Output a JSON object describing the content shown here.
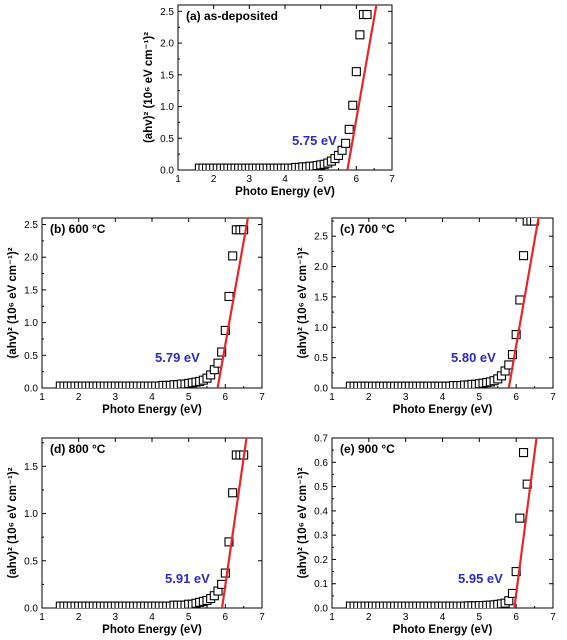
{
  "style": {
    "fit_color": "#e8262a",
    "marker_color": "#000000",
    "annotation_color": "#2b2bbd"
  },
  "chart_data": [
    {
      "type": "scatter",
      "title": "(a) as-deposited",
      "xlabel": "Photo Energy (eV)",
      "ylabel": "(ahv)² (10⁶ eV cm⁻¹)²",
      "xlim": [
        1,
        7
      ],
      "ylim": [
        0,
        2.6
      ],
      "xticks": [
        1,
        2,
        3,
        4,
        5,
        6,
        7
      ],
      "xtick_labels": [
        "1",
        "2",
        "3",
        "4",
        "5",
        "6",
        "7"
      ],
      "yticks": [
        0,
        0.5,
        1.0,
        1.5,
        2.0,
        2.5
      ],
      "ytick_labels": [
        "0.0",
        "0.5",
        "1.0",
        "1.5",
        "2.0",
        "2.5"
      ],
      "annotation": "5.75 eV",
      "band_gap_eV": 5.75,
      "fit_line": {
        "x": [
          5.75,
          6.6
        ],
        "y": [
          0,
          2.72
        ]
      },
      "series": [
        {
          "x": [
            1.6,
            1.7,
            1.8,
            1.9,
            2.0,
            2.1,
            2.2,
            2.3,
            2.4,
            2.5,
            2.6,
            2.7,
            2.8,
            2.9,
            3.0,
            3.1,
            3.2,
            3.3,
            3.4,
            3.5,
            3.6,
            3.7,
            3.8,
            3.9,
            4.0,
            4.1,
            4.2,
            4.3,
            4.4,
            4.5,
            4.6,
            4.7,
            4.8,
            4.9,
            5.0,
            5.1,
            5.2,
            5.3,
            5.4,
            5.5,
            5.6,
            5.7,
            5.8,
            5.9,
            6.0,
            6.1,
            6.2,
            6.3
          ],
          "y": [
            0.03,
            0.03,
            0.03,
            0.03,
            0.03,
            0.03,
            0.03,
            0.03,
            0.03,
            0.03,
            0.03,
            0.03,
            0.03,
            0.03,
            0.03,
            0.03,
            0.03,
            0.03,
            0.03,
            0.03,
            0.03,
            0.03,
            0.03,
            0.03,
            0.03,
            0.03,
            0.03,
            0.04,
            0.04,
            0.05,
            0.05,
            0.06,
            0.06,
            0.07,
            0.08,
            0.09,
            0.11,
            0.14,
            0.18,
            0.23,
            0.31,
            0.42,
            0.64,
            1.02,
            1.55,
            2.13,
            2.45,
            2.45
          ]
        }
      ]
    },
    {
      "type": "scatter",
      "title": "(b) 600 °C",
      "xlabel": "Photo Energy (eV)",
      "ylabel": "(ahv)² (10⁶ eV cm⁻¹)²",
      "xlim": [
        1,
        7
      ],
      "ylim": [
        0,
        2.6
      ],
      "xticks": [
        1,
        2,
        3,
        4,
        5,
        6,
        7
      ],
      "xtick_labels": [
        "1",
        "2",
        "3",
        "4",
        "5",
        "6",
        "7"
      ],
      "yticks": [
        0,
        0.5,
        1.0,
        1.5,
        2.0,
        2.5
      ],
      "ytick_labels": [
        "0.0",
        "0.5",
        "1.0",
        "1.5",
        "2.0",
        "2.5"
      ],
      "annotation": "5.79 eV",
      "band_gap_eV": 5.79,
      "fit_line": {
        "x": [
          5.79,
          6.63
        ],
        "y": [
          0,
          2.65
        ]
      },
      "series": [
        {
          "x": [
            1.5,
            1.6,
            1.7,
            1.8,
            1.9,
            2.0,
            2.1,
            2.2,
            2.3,
            2.4,
            2.5,
            2.6,
            2.7,
            2.8,
            2.9,
            3.0,
            3.1,
            3.2,
            3.3,
            3.4,
            3.5,
            3.6,
            3.7,
            3.8,
            3.9,
            4.0,
            4.1,
            4.2,
            4.3,
            4.4,
            4.5,
            4.6,
            4.7,
            4.8,
            4.9,
            5.0,
            5.1,
            5.2,
            5.3,
            5.4,
            5.5,
            5.6,
            5.7,
            5.8,
            5.9,
            6.0,
            6.1,
            6.2,
            6.3,
            6.4,
            6.5
          ],
          "y": [
            0.03,
            0.03,
            0.03,
            0.03,
            0.03,
            0.03,
            0.03,
            0.03,
            0.03,
            0.03,
            0.03,
            0.03,
            0.03,
            0.03,
            0.03,
            0.03,
            0.03,
            0.03,
            0.03,
            0.03,
            0.03,
            0.03,
            0.03,
            0.03,
            0.03,
            0.03,
            0.03,
            0.03,
            0.04,
            0.04,
            0.04,
            0.05,
            0.05,
            0.06,
            0.06,
            0.07,
            0.08,
            0.09,
            0.1,
            0.12,
            0.15,
            0.2,
            0.28,
            0.38,
            0.55,
            0.88,
            1.4,
            2.02,
            2.42,
            2.42,
            2.42
          ]
        }
      ]
    },
    {
      "type": "scatter",
      "title": "(c) 700 °C",
      "xlabel": "Photo Energy (eV)",
      "ylabel": "(ahv)² (10⁶ eV cm⁻¹)²",
      "xlim": [
        1,
        7
      ],
      "ylim": [
        0,
        2.8
      ],
      "xticks": [
        1,
        2,
        3,
        4,
        5,
        6,
        7
      ],
      "xtick_labels": [
        "1",
        "2",
        "3",
        "4",
        "5",
        "6",
        "7"
      ],
      "yticks": [
        0,
        0.5,
        1.0,
        1.5,
        2.0,
        2.5
      ],
      "ytick_labels": [
        "0.0",
        "0.5",
        "1.0",
        "1.5",
        "2.0",
        "2.5"
      ],
      "annotation": "5.80 eV",
      "band_gap_eV": 5.8,
      "fit_line": {
        "x": [
          5.8,
          6.62
        ],
        "y": [
          0,
          2.85
        ]
      },
      "series": [
        {
          "x": [
            1.5,
            1.6,
            1.7,
            1.8,
            1.9,
            2.0,
            2.1,
            2.2,
            2.3,
            2.4,
            2.5,
            2.6,
            2.7,
            2.8,
            2.9,
            3.0,
            3.1,
            3.2,
            3.3,
            3.4,
            3.5,
            3.6,
            3.7,
            3.8,
            3.9,
            4.0,
            4.1,
            4.2,
            4.3,
            4.4,
            4.5,
            4.6,
            4.7,
            4.8,
            4.9,
            5.0,
            5.1,
            5.2,
            5.3,
            5.4,
            5.5,
            5.6,
            5.7,
            5.8,
            5.9,
            6.0,
            6.1,
            6.2,
            6.3,
            6.4,
            6.5
          ],
          "y": [
            0.03,
            0.03,
            0.03,
            0.03,
            0.03,
            0.03,
            0.03,
            0.03,
            0.03,
            0.03,
            0.03,
            0.03,
            0.03,
            0.03,
            0.03,
            0.03,
            0.03,
            0.03,
            0.03,
            0.03,
            0.03,
            0.03,
            0.03,
            0.03,
            0.03,
            0.03,
            0.03,
            0.03,
            0.04,
            0.04,
            0.04,
            0.05,
            0.05,
            0.06,
            0.06,
            0.07,
            0.08,
            0.09,
            0.1,
            0.12,
            0.15,
            0.2,
            0.28,
            0.38,
            0.55,
            0.88,
            1.45,
            2.18,
            2.75,
            2.75,
            2.75
          ]
        }
      ]
    },
    {
      "type": "scatter",
      "title": "(d) 800 °C",
      "xlabel": "Photo Energy (eV)",
      "ylabel": "(ahv)² (10⁶ eV cm⁻¹)²",
      "xlim": [
        1,
        7
      ],
      "ylim": [
        0,
        1.8
      ],
      "xticks": [
        1,
        2,
        3,
        4,
        5,
        6,
        7
      ],
      "xtick_labels": [
        "1",
        "2",
        "3",
        "4",
        "5",
        "6",
        "7"
      ],
      "yticks": [
        0,
        0.5,
        1.0,
        1.5
      ],
      "ytick_labels": [
        "0.0",
        "0.5",
        "1.0",
        "1.5"
      ],
      "annotation": "5.91 eV",
      "band_gap_eV": 5.91,
      "fit_line": {
        "x": [
          5.91,
          6.6
        ],
        "y": [
          0,
          1.86
        ]
      },
      "series": [
        {
          "x": [
            1.5,
            1.6,
            1.7,
            1.8,
            1.9,
            2.0,
            2.1,
            2.2,
            2.3,
            2.4,
            2.5,
            2.6,
            2.7,
            2.8,
            2.9,
            3.0,
            3.1,
            3.2,
            3.3,
            3.4,
            3.5,
            3.6,
            3.7,
            3.8,
            3.9,
            4.0,
            4.1,
            4.2,
            4.3,
            4.4,
            4.5,
            4.6,
            4.7,
            4.8,
            4.9,
            5.0,
            5.1,
            5.2,
            5.3,
            5.4,
            5.5,
            5.6,
            5.7,
            5.8,
            5.9,
            6.0,
            6.1,
            6.2,
            6.3,
            6.4,
            6.5
          ],
          "y": [
            0.02,
            0.02,
            0.02,
            0.02,
            0.02,
            0.02,
            0.02,
            0.02,
            0.02,
            0.02,
            0.02,
            0.02,
            0.02,
            0.02,
            0.02,
            0.02,
            0.02,
            0.02,
            0.02,
            0.02,
            0.02,
            0.02,
            0.02,
            0.02,
            0.02,
            0.02,
            0.02,
            0.02,
            0.02,
            0.02,
            0.02,
            0.03,
            0.03,
            0.03,
            0.03,
            0.04,
            0.04,
            0.05,
            0.06,
            0.07,
            0.08,
            0.1,
            0.13,
            0.18,
            0.25,
            0.37,
            0.7,
            1.22,
            1.62,
            1.62,
            1.62
          ]
        }
      ]
    },
    {
      "type": "scatter",
      "title": "(e) 900 °C",
      "xlabel": "Photo Energy (eV)",
      "ylabel": "(ahv)² (10⁶ eV cm⁻¹)²",
      "xlim": [
        1,
        7
      ],
      "ylim": [
        0,
        0.7
      ],
      "xticks": [
        1,
        2,
        3,
        4,
        5,
        6,
        7
      ],
      "xtick_labels": [
        "1",
        "2",
        "3",
        "4",
        "5",
        "6",
        "7"
      ],
      "yticks": [
        0,
        0.1,
        0.2,
        0.3,
        0.4,
        0.5,
        0.6,
        0.7
      ],
      "ytick_labels": [
        "0.0",
        "0.1",
        "0.2",
        "0.3",
        "0.4",
        "0.5",
        "0.6",
        "0.7"
      ],
      "annotation": "5.95 eV",
      "band_gap_eV": 5.95,
      "fit_line": {
        "x": [
          5.95,
          6.57
        ],
        "y": [
          0,
          0.72
        ]
      },
      "series": [
        {
          "x": [
            1.5,
            1.6,
            1.7,
            1.8,
            1.9,
            2.0,
            2.1,
            2.2,
            2.3,
            2.4,
            2.5,
            2.6,
            2.7,
            2.8,
            2.9,
            3.0,
            3.1,
            3.2,
            3.3,
            3.4,
            3.5,
            3.6,
            3.7,
            3.8,
            3.9,
            4.0,
            4.1,
            4.2,
            4.3,
            4.4,
            4.5,
            4.6,
            4.7,
            4.8,
            4.9,
            5.0,
            5.1,
            5.2,
            5.3,
            5.4,
            5.5,
            5.6,
            5.7,
            5.8,
            5.9,
            6.0,
            6.1,
            6.2,
            6.3
          ],
          "y": [
            0.008,
            0.008,
            0.008,
            0.008,
            0.008,
            0.008,
            0.008,
            0.008,
            0.008,
            0.008,
            0.008,
            0.008,
            0.008,
            0.008,
            0.008,
            0.008,
            0.008,
            0.008,
            0.008,
            0.008,
            0.008,
            0.008,
            0.008,
            0.008,
            0.008,
            0.008,
            0.008,
            0.008,
            0.008,
            0.008,
            0.008,
            0.008,
            0.009,
            0.009,
            0.009,
            0.01,
            0.01,
            0.011,
            0.012,
            0.013,
            0.015,
            0.017,
            0.02,
            0.03,
            0.06,
            0.15,
            0.37,
            0.64,
            0.51
          ]
        }
      ]
    }
  ]
}
